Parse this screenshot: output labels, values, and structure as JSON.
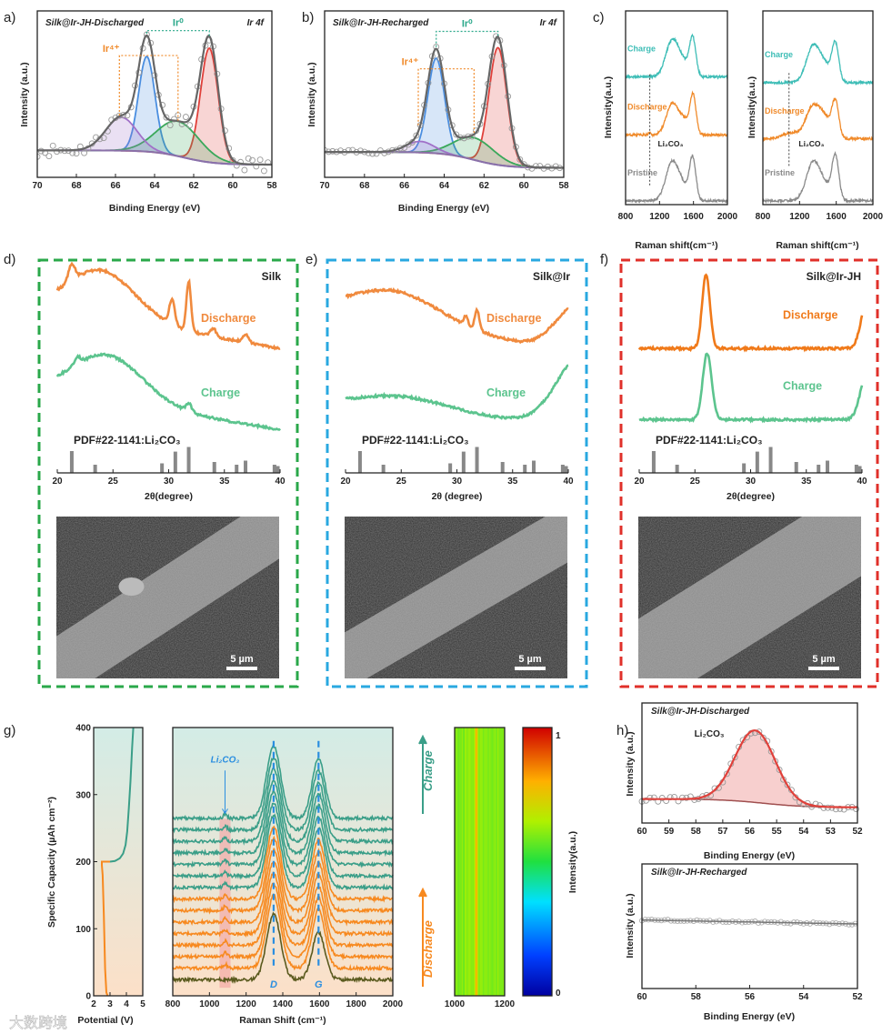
{
  "figure": {
    "panel_labels": [
      "a)",
      "b)",
      "c)",
      "d)",
      "e)",
      "f)",
      "g)",
      "h)"
    ],
    "watermark": "大数跨境"
  },
  "chart_data": [
    {
      "id": "a",
      "type": "line",
      "title": "Silk@Ir-JH-Discharged",
      "label": "Ir 4f",
      "xlabel": "Binding Energy (eV)",
      "ylabel": "Intensity (a.u.)",
      "xlim": [
        70,
        58
      ],
      "ylim": [
        0,
        1
      ],
      "xticks": [
        70,
        68,
        66,
        64,
        62,
        60,
        58
      ],
      "annotations": {
        "ir4": "Ir⁴⁺",
        "ir0": "Ir⁰"
      },
      "background": {
        "low": 0.08,
        "high": 0.17,
        "center": 62.5
      },
      "components": [
        {
          "name": "Ir0 4f7/2",
          "center": 61.2,
          "height": 0.72,
          "width": 0.45,
          "color": "#e0403a"
        },
        {
          "name": "Ir0 4f5/2",
          "center": 64.4,
          "height": 0.6,
          "width": 0.42,
          "color": "#4a8ee0"
        },
        {
          "name": "Ir4+ 4f7/2",
          "center": 62.8,
          "height": 0.22,
          "width": 1.1,
          "color": "#3aa85a"
        },
        {
          "name": "Ir4+ 4f5/2",
          "center": 65.7,
          "height": 0.21,
          "width": 0.8,
          "color": "#a070c8"
        }
      ],
      "noise": 0.04
    },
    {
      "id": "b",
      "type": "line",
      "title": "Silk@Ir-JH-Recharged",
      "label": "Ir 4f",
      "xlabel": "Binding Energy (eV)",
      "ylabel": "Intensity (a.u.)",
      "xlim": [
        70,
        58
      ],
      "ylim": [
        0,
        1
      ],
      "xticks": [
        70,
        68,
        66,
        64,
        62,
        60,
        58
      ],
      "annotations": {
        "ir4": "Ir⁴⁺",
        "ir0": "Ir⁰"
      },
      "background": {
        "low": 0.06,
        "high": 0.16,
        "center": 62.5
      },
      "components": [
        {
          "name": "Ir0 4f7/2",
          "center": 61.3,
          "height": 0.74,
          "width": 0.45,
          "color": "#e0403a"
        },
        {
          "name": "Ir0 4f5/2",
          "center": 64.4,
          "height": 0.6,
          "width": 0.42,
          "color": "#4a8ee0"
        },
        {
          "name": "Ir4+ 4f7/2",
          "center": 62.5,
          "height": 0.14,
          "width": 1.0,
          "color": "#3aa85a"
        },
        {
          "name": "Ir4+ 4f5/2",
          "center": 65.2,
          "height": 0.07,
          "width": 0.7,
          "color": "#a070c8"
        }
      ],
      "noise": 0.012
    },
    {
      "id": "c",
      "type": "line",
      "xlabel": "Raman shift(cm⁻¹)",
      "ylabel": "Intensity(a.u.)",
      "xlim": [
        800,
        2000
      ],
      "ylim": [
        0,
        1
      ],
      "xticks": [
        800,
        1200,
        1600,
        2000
      ],
      "marker": {
        "x": 1085,
        "label": "Li₂CO₃"
      },
      "subplots": [
        {
          "series": [
            {
              "name": "Charge",
              "color": "#3dbdb6",
              "offset": 0.66,
              "peaks": [
                [
                  1350,
                  0.19,
                  75
                ],
                [
                  1590,
                  0.2,
                  38
                ],
                [
                  1480,
                  0.06,
                  60
                ]
              ]
            },
            {
              "name": "Discharge",
              "color": "#f08a2a",
              "offset": 0.36,
              "peaks": [
                [
                  1085,
                  0.015,
                  12
                ],
                [
                  1350,
                  0.16,
                  70
                ],
                [
                  1595,
                  0.2,
                  35
                ],
                [
                  1490,
                  0.07,
                  60
                ]
              ]
            },
            {
              "name": "Pristine",
              "color": "#8a8a8a",
              "offset": 0.02,
              "peaks": [
                [
                  1350,
                  0.2,
                  75
                ],
                [
                  1590,
                  0.22,
                  38
                ],
                [
                  1480,
                  0.06,
                  60
                ]
              ]
            }
          ]
        },
        {
          "series": [
            {
              "name": "Charge",
              "color": "#3dbdb6",
              "offset": 0.63,
              "peaks": [
                [
                  1350,
                  0.19,
                  75
                ],
                [
                  1590,
                  0.2,
                  38
                ],
                [
                  1480,
                  0.07,
                  60
                ]
              ]
            },
            {
              "name": "Discharge",
              "color": "#f08a2a",
              "offset": 0.34,
              "peaks": [
                [
                  1350,
                  0.17,
                  80
                ],
                [
                  1590,
                  0.19,
                  38
                ],
                [
                  1480,
                  0.08,
                  60
                ],
                [
                  1100,
                  0.03,
                  90
                ]
              ]
            },
            {
              "name": "Pristine",
              "color": "#8a8a8a",
              "offset": 0.02,
              "peaks": [
                [
                  1350,
                  0.2,
                  75
                ],
                [
                  1590,
                  0.23,
                  38
                ],
                [
                  1480,
                  0.06,
                  60
                ]
              ]
            }
          ]
        }
      ]
    },
    {
      "id": "d",
      "type": "line",
      "sample": "Silk",
      "border": "#2aa84a",
      "xlabel": "2θ(degree)",
      "xlim": [
        20,
        40
      ],
      "xticks": [
        20,
        25,
        30,
        35,
        40
      ],
      "reference": {
        "label": "PDF#22-1141:Li₂CO₃",
        "x": [
          21.3,
          23.4,
          29.4,
          30.6,
          31.8,
          34.1,
          36.1,
          36.9,
          39.5,
          39.8
        ],
        "y": [
          0.8,
          0.3,
          0.35,
          0.78,
          0.95,
          0.4,
          0.3,
          0.45,
          0.3,
          0.25
        ]
      },
      "series": [
        {
          "name": "Discharge",
          "color": "#f08a3e",
          "offset": 0.45,
          "base": 0.3,
          "slope": -0.012,
          "peaks": [
            [
              24,
              0.28,
              3
            ],
            [
              21.3,
              0.1,
              0.3
            ],
            [
              30.3,
              0.15,
              0.25
            ],
            [
              31.8,
              0.3,
              0.2
            ],
            [
              34,
              0.05,
              0.25
            ],
            [
              36.9,
              0.05,
              0.25
            ]
          ]
        },
        {
          "name": "Charge",
          "color": "#5cc48e",
          "offset": 0.0,
          "base": 0.24,
          "slope": -0.011,
          "peaks": [
            [
              24.5,
              0.28,
              3.2
            ],
            [
              31.8,
              0.05,
              0.25
            ],
            [
              21.8,
              0.04,
              0.3
            ]
          ]
        }
      ],
      "scale_bar": "5 µm"
    },
    {
      "id": "e",
      "type": "line",
      "sample": "Silk@Ir",
      "border": "#29a8e0",
      "xlabel": "2θ (degree)",
      "xlim": [
        20,
        40
      ],
      "xticks": [
        20,
        25,
        30,
        35,
        40
      ],
      "reference": {
        "label": "PDF#22-1141:Li₂CO₃",
        "x": [
          21.3,
          23.4,
          29.4,
          30.6,
          31.8,
          34.1,
          36.1,
          36.9,
          39.5,
          39.8
        ],
        "y": [
          0.8,
          0.3,
          0.35,
          0.78,
          0.95,
          0.4,
          0.3,
          0.45,
          0.3,
          0.25
        ]
      },
      "series": [
        {
          "name": "Discharge",
          "color": "#f08a3e",
          "offset": 0.45,
          "base": 0.28,
          "slope": -0.012,
          "peaks": [
            [
              24.5,
              0.18,
              4
            ],
            [
              30.8,
              0.05,
              0.2
            ],
            [
              31.8,
              0.12,
              0.2
            ],
            [
              41,
              0.3,
              2
            ]
          ]
        },
        {
          "name": "Charge",
          "color": "#5cc48e",
          "offset": 0.0,
          "base": 0.17,
          "slope": -0.006,
          "peaks": [
            [
              25,
              0.08,
              4
            ],
            [
              41.2,
              0.42,
              2.2
            ]
          ]
        }
      ],
      "scale_bar": "5 µm"
    },
    {
      "id": "f",
      "type": "line",
      "sample": "Silk@Ir-JH",
      "border": "#e0302a",
      "xlabel": "2θ(degree)",
      "xlim": [
        20,
        40
      ],
      "xticks": [
        20,
        25,
        30,
        35,
        40
      ],
      "reference": {
        "label": "PDF#22-1141:Li₂CO₃",
        "x": [
          21.3,
          23.4,
          29.4,
          30.6,
          31.8,
          34.1,
          36.1,
          36.9,
          39.5,
          39.8
        ],
        "y": [
          0.8,
          0.3,
          0.35,
          0.78,
          0.95,
          0.4,
          0.3,
          0.45,
          0.3,
          0.25
        ]
      },
      "series": [
        {
          "name": "Discharge",
          "color": "#f07a1a",
          "offset": 0.43,
          "base": 0.08,
          "slope": 0,
          "peaks": [
            [
              26,
              0.45,
              0.35
            ],
            [
              40.5,
              0.3,
              0.55
            ]
          ]
        },
        {
          "name": "Charge",
          "color": "#5cc48e",
          "offset": 0.0,
          "base": 0.08,
          "slope": 0,
          "peaks": [
            [
              26.1,
              0.4,
              0.4
            ],
            [
              40.5,
              0.3,
              0.6
            ]
          ]
        }
      ],
      "scale_bar": "5 µm"
    },
    {
      "id": "g-capacity",
      "type": "line",
      "xlabel": "Potential (V)",
      "ylabel": "Specific Capacity (µAh cm⁻²)",
      "xlim": [
        2,
        5
      ],
      "ylim": [
        0,
        400
      ],
      "xticks": [
        2,
        3,
        4,
        5
      ],
      "yticks": [
        0,
        100,
        200,
        300,
        400
      ],
      "series": [
        {
          "name": "Discharge",
          "color": "#f7891f",
          "x": [
            2.85,
            2.78,
            2.7,
            2.62,
            2.55,
            2.5,
            2.5,
            2.7,
            3.0
          ],
          "y": [
            0,
            5,
            40,
            120,
            180,
            195,
            200,
            200,
            200
          ]
        },
        {
          "name": "Charge",
          "color": "#3a9e88",
          "x": [
            3.0,
            3.3,
            3.6,
            3.8,
            3.95,
            4.05,
            4.15,
            4.25,
            4.35,
            4.42
          ],
          "y": [
            200,
            201,
            205,
            212,
            225,
            245,
            280,
            320,
            370,
            400
          ]
        }
      ]
    },
    {
      "id": "g-raman",
      "type": "line",
      "xlabel": "Raman Shift (cm⁻¹)",
      "xlim": [
        800,
        2000
      ],
      "ylim": [
        0,
        1
      ],
      "xticks": [
        800,
        1000,
        1200,
        1400,
        1600,
        1800,
        2000
      ],
      "marker": {
        "label": "Li₂CO₃",
        "x_range": [
          1055,
          1115
        ]
      },
      "bands": [
        {
          "label": "D",
          "x": 1350
        },
        {
          "label": "G",
          "x": 1595
        }
      ],
      "arrows": {
        "charge": "Charge",
        "discharge": "Discharge"
      },
      "traces": {
        "count_discharge": 7,
        "count_charge": 7,
        "bottom_color": "#5a5a1e",
        "discharge_color": "#f7891f",
        "charge_color": "#3a9e88",
        "D": [
          1350,
          0.27,
          38
        ],
        "G": [
          1595,
          0.22,
          35
        ],
        "Li2CO3": [
          1085,
          0.015,
          10
        ]
      }
    },
    {
      "id": "g-map",
      "type": "heatmap",
      "xlim": [
        1000,
        1200
      ],
      "xticks": [
        1000,
        1200
      ],
      "peak_x": 1085,
      "base_intensity": 0.6,
      "peak_intensity": 0.8,
      "colorbar": {
        "min": "0",
        "max": "1",
        "label": "Intensity(a.u.)"
      }
    },
    {
      "id": "h-top",
      "type": "line",
      "title": "Silk@Ir-JH-Discharged",
      "annotation": "Li₂CO₃",
      "xlabel": "Binding Energy (eV)",
      "ylabel": "Intensity (a.u.)",
      "xlim": [
        60,
        52
      ],
      "ylim": [
        0,
        1
      ],
      "xticks": [
        60,
        59,
        58,
        57,
        56,
        55,
        54,
        53,
        52
      ],
      "background": {
        "high": 0.2,
        "low": 0.13,
        "center": 55.5
      },
      "peak": {
        "center": 55.8,
        "height": 0.6,
        "width": 0.75,
        "color": "#e0403a"
      }
    },
    {
      "id": "h-bottom",
      "type": "line",
      "title": "Silk@Ir-JH-Recharged",
      "xlabel": "Binding Energy (eV)",
      "ylabel": "Intensity (a.u.)",
      "xlim": [
        60,
        52
      ],
      "ylim": [
        0,
        1
      ],
      "xticks": [
        60,
        58,
        56,
        54,
        52
      ],
      "level": 0.55
    }
  ]
}
